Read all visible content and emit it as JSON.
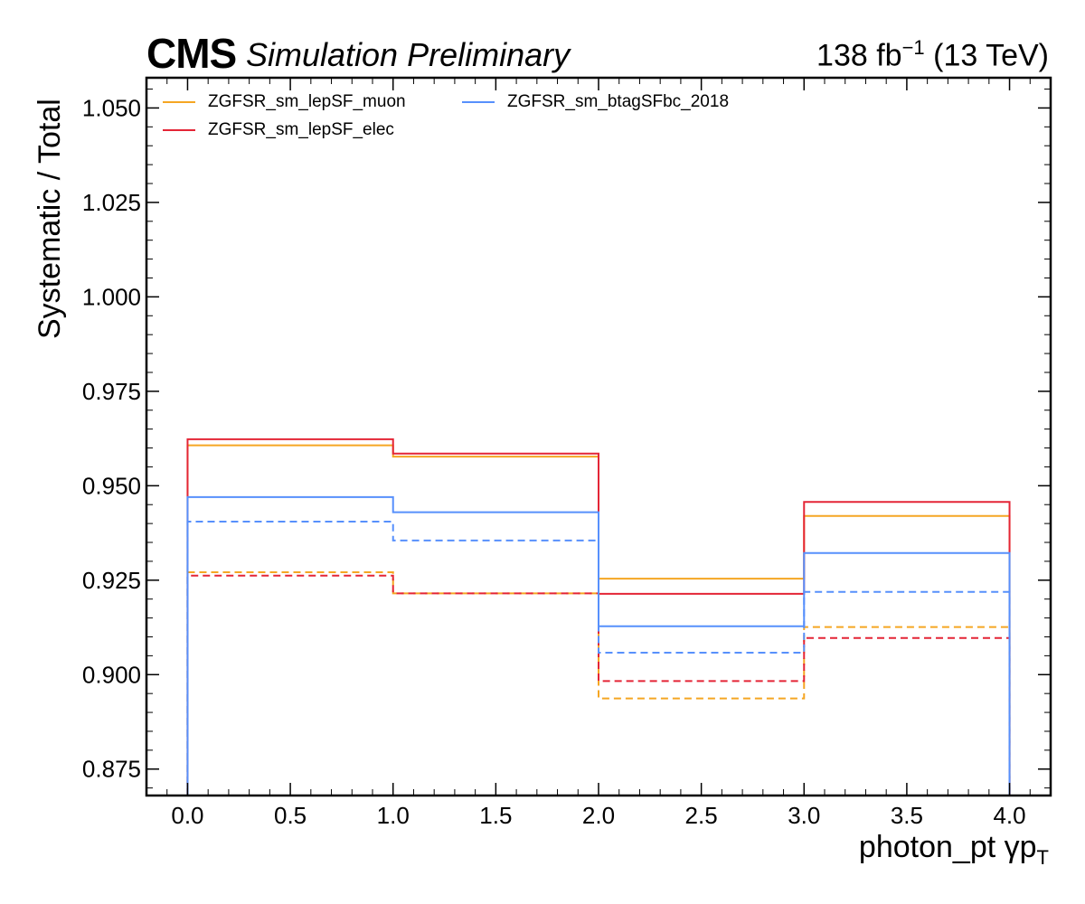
{
  "header": {
    "cms": "CMS",
    "status": "Simulation Preliminary",
    "lumi_value": "138 fb",
    "lumi_exp": "−1",
    "lumi_energy": " (13 TeV)"
  },
  "chart_data": {
    "type": "line",
    "drawstyle": "steps",
    "title": "",
    "xlabel": "photon_pt   γp",
    "xlabel_sub": "T",
    "ylabel": "Systematic / Total",
    "xlim": [
      -0.2,
      4.2
    ],
    "ylim": [
      0.868,
      1.058
    ],
    "bin_edges": [
      0,
      1,
      2,
      3,
      4
    ],
    "x_ticks": [
      "0.0",
      "0.5",
      "1.0",
      "1.5",
      "2.0",
      "2.5",
      "3.0",
      "3.5",
      "4.0"
    ],
    "y_ticks": [
      "0.875",
      "0.900",
      "0.925",
      "0.950",
      "0.975",
      "1.000",
      "1.025",
      "1.050"
    ],
    "legend_position": "top-left",
    "series": [
      {
        "name": "ZGFSR_sm_lepSF_muon",
        "color": "#f5a623",
        "style": "solid",
        "values": [
          0.9607,
          0.9577,
          0.9254,
          0.942
        ]
      },
      {
        "name": "",
        "color": "#f5a623",
        "style": "dashed",
        "values": [
          0.9271,
          0.9215,
          0.8937,
          0.9126
        ]
      },
      {
        "name": "ZGFSR_sm_lepSF_elec",
        "color": "#e42536",
        "style": "solid",
        "values": [
          0.9623,
          0.9585,
          0.9214,
          0.9457
        ]
      },
      {
        "name": "",
        "color": "#e42536",
        "style": "dashed",
        "values": [
          0.9262,
          0.9215,
          0.8983,
          0.9097
        ]
      },
      {
        "name": "ZGFSR_sm_btagSFbc_2018",
        "color": "#5790fc",
        "style": "solid",
        "values": [
          0.947,
          0.943,
          0.9128,
          0.9322
        ]
      },
      {
        "name": "",
        "color": "#5790fc",
        "style": "dashed",
        "values": [
          0.9405,
          0.9355,
          0.9058,
          0.9219
        ]
      }
    ]
  }
}
